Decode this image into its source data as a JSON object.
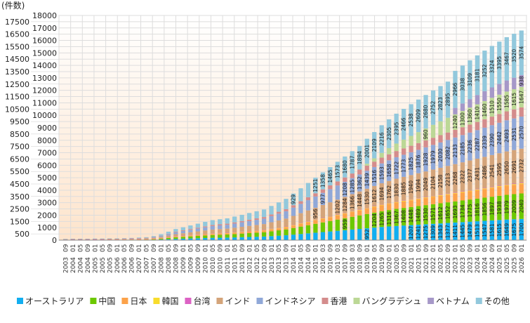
{
  "chart_data": {
    "type": "bar",
    "stacked": true,
    "ylabel": "(件数)",
    "ylim": [
      0,
      18000
    ],
    "ytick_step": 500,
    "grid": true,
    "legend_position": "bottom",
    "categories": [
      [
        "2003",
        "09"
      ],
      [
        "2004",
        "01"
      ],
      [
        "2004",
        "05"
      ],
      [
        "2004",
        "09"
      ],
      [
        "2005",
        "01"
      ],
      [
        "2005",
        "05"
      ],
      [
        "2005",
        "09"
      ],
      [
        "2006",
        "01"
      ],
      [
        "2006",
        "05"
      ],
      [
        "2006",
        "09"
      ],
      [
        "2007",
        "01"
      ],
      [
        "2007",
        "05"
      ],
      [
        "2007",
        "09"
      ],
      [
        "2008",
        "01"
      ],
      [
        "2008",
        "05"
      ],
      [
        "2008",
        "09"
      ],
      [
        "2009",
        "01"
      ],
      [
        "2009",
        "05"
      ],
      [
        "2009",
        "09"
      ],
      [
        "2010",
        "01"
      ],
      [
        "2010",
        "05"
      ],
      [
        "2010",
        "09"
      ],
      [
        "2011",
        "01"
      ],
      [
        "2011",
        "05"
      ],
      [
        "2011",
        "09"
      ],
      [
        "2012",
        "01"
      ],
      [
        "2012",
        "05"
      ],
      [
        "2012",
        "09"
      ],
      [
        "2013",
        "01"
      ],
      [
        "2013",
        "05"
      ],
      [
        "2013",
        "09"
      ],
      [
        "2014",
        "01"
      ],
      [
        "2014",
        "05"
      ],
      [
        "2014",
        "09"
      ],
      [
        "2015",
        "01"
      ],
      [
        "2016",
        "03"
      ],
      [
        "2016",
        "09"
      ],
      [
        "2017",
        "03"
      ],
      [
        "2017",
        "09"
      ],
      [
        "2018",
        "03"
      ],
      [
        "2018",
        "09"
      ],
      [
        "2019",
        "01"
      ],
      [
        "2019",
        "05"
      ],
      [
        "2019",
        "09"
      ],
      [
        "2020",
        "01"
      ],
      [
        "2020",
        "05"
      ],
      [
        "2020",
        "09"
      ],
      [
        "2021",
        "01"
      ],
      [
        "2021",
        "05"
      ],
      [
        "2021",
        "09"
      ],
      [
        "2022",
        "01"
      ],
      [
        "2022",
        "05"
      ],
      [
        "2022",
        "09"
      ],
      [
        "2023",
        "01"
      ],
      [
        "2023",
        "05"
      ],
      [
        "2023",
        "09"
      ],
      [
        "2024",
        "01"
      ],
      [
        "2024",
        "05"
      ],
      [
        "2024",
        "09"
      ],
      [
        "2025",
        "01"
      ],
      [
        "2025",
        "05"
      ],
      [
        "2025",
        "09"
      ],
      [
        "2026",
        "01"
      ]
    ],
    "series": [
      {
        "name": "オーストラリア",
        "color": "#12aef0",
        "values": [
          9,
          10,
          10,
          10,
          12,
          12,
          14,
          14,
          15,
          17,
          20,
          24,
          34,
          51,
          77,
          102,
          119,
          136,
          153,
          170,
          187,
          196,
          204,
          221,
          238,
          255,
          272,
          289,
          323,
          357,
          391,
          442,
          493,
          544,
          595,
          646,
          697,
          748,
          799,
          850,
          901,
          952,
          1003,
          1054,
          1097,
          1139,
          1173,
          1207,
          1241,
          1275,
          1309,
          1343,
          1377,
          1411,
          1445,
          1479,
          1513,
          1547,
          1581,
          1615,
          1649,
          1675,
          1700
        ]
      },
      {
        "name": "中国",
        "color": "#6cc800",
        "values": [
          10,
          12,
          12,
          12,
          14,
          14,
          16,
          16,
          18,
          20,
          24,
          29,
          41,
          61,
          92,
          122,
          143,
          163,
          184,
          204,
          224,
          235,
          245,
          265,
          286,
          306,
          326,
          347,
          388,
          428,
          469,
          530,
          592,
          653,
          714,
          775,
          836,
          898,
          959,
          1020,
          1081,
          1142,
          1204,
          1265,
          1316,
          1367,
          1408,
          1448,
          1489,
          1530,
          1571,
          1612,
          1652,
          1693,
          1734,
          1775,
          1816,
          1856,
          1897,
          1938,
          1979,
          2009,
          2040
        ]
      },
      {
        "name": "日本",
        "color": "#fca24a",
        "values": [
          4,
          5,
          5,
          5,
          5,
          5,
          6,
          6,
          7,
          8,
          9,
          11,
          15,
          23,
          34,
          45,
          53,
          60,
          68,
          76,
          83,
          87,
          91,
          98,
          106,
          113,
          121,
          128,
          143,
          159,
          174,
          196,
          219,
          242,
          264,
          287,
          310,
          332,
          355,
          378,
          400,
          423,
          445,
          468,
          487,
          506,
          521,
          536,
          551,
          566,
          581,
          596,
          612,
          627,
          642,
          657,
          672,
          687,
          702,
          717,
          732,
          744,
          755
        ]
      },
      {
        "name": "韓国",
        "color": "#f8dc2c",
        "values": [
          20,
          22,
          22,
          23,
          24,
          25,
          26,
          27,
          28,
          30,
          31,
          32,
          33,
          34,
          35,
          36,
          37,
          38,
          38,
          39,
          40,
          40,
          41,
          41,
          42,
          42,
          43,
          43,
          44,
          44,
          45,
          45,
          46,
          46,
          47,
          47,
          48,
          48,
          49,
          49,
          50,
          50,
          51,
          51,
          52,
          52,
          53,
          53,
          54,
          54,
          55,
          55,
          56,
          56,
          57,
          57,
          58,
          58,
          59,
          59,
          60,
          60,
          60
        ]
      },
      {
        "name": "台湾",
        "color": "#dc62c4",
        "values": [
          5,
          5,
          5,
          5,
          6,
          6,
          6,
          6,
          7,
          7,
          7,
          8,
          8,
          9,
          9,
          10,
          10,
          11,
          11,
          12,
          12,
          13,
          13,
          14,
          14,
          15,
          15,
          16,
          16,
          17,
          17,
          18,
          18,
          19,
          19,
          20,
          20,
          21,
          21,
          22,
          22,
          23,
          24,
          25,
          26,
          27,
          28,
          29,
          30,
          31,
          32,
          33,
          34,
          35,
          35,
          36,
          37,
          37,
          38,
          38,
          39,
          40,
          40
        ]
      },
      {
        "name": "インド",
        "color": "#d4a47a",
        "values": [
          14,
          16,
          16,
          16,
          19,
          19,
          22,
          22,
          25,
          27,
          33,
          38,
          55,
          82,
          123,
          164,
          191,
          219,
          246,
          273,
          301,
          314,
          328,
          355,
          382,
          410,
          437,
          464,
          519,
          574,
          628,
          710,
          792,
          874,
          956,
          1038,
          1120,
          1202,
          1284,
          1366,
          1448,
          1530,
          1612,
          1694,
          1762,
          1830,
          1885,
          1940,
          1994,
          2049,
          2104,
          2158,
          2213,
          2268,
          2322,
          2377,
          2431,
          2486,
          2541,
          2595,
          2650,
          2691,
          2732
        ]
      },
      {
        "name": "インドネシア",
        "color": "#90a8d8",
        "values": [
          13,
          15,
          15,
          15,
          18,
          18,
          21,
          21,
          23,
          26,
          31,
          36,
          51,
          77,
          116,
          154,
          180,
          206,
          231,
          257,
          283,
          296,
          308,
          334,
          360,
          386,
          411,
          437,
          488,
          540,
          591,
          668,
          745,
          822,
          900,
          977,
          1054,
          1131,
          1208,
          1285,
          1362,
          1439,
          1516,
          1593,
          1658,
          1722,
          1773,
          1825,
          1876,
          1928,
          1979,
          2030,
          2082,
          2133,
          2185,
          2236,
          2287,
          2339,
          2390,
          2442,
          2493,
          2531,
          2570
        ]
      },
      {
        "name": "香港",
        "color": "#d48c8c",
        "values": [
          4,
          4,
          4,
          4,
          5,
          5,
          6,
          6,
          7,
          7,
          9,
          10,
          15,
          22,
          33,
          44,
          52,
          59,
          66,
          74,
          81,
          85,
          89,
          96,
          103,
          111,
          118,
          125,
          140,
          155,
          170,
          192,
          214,
          236,
          258,
          280,
          303,
          325,
          347,
          369,
          391,
          413,
          435,
          458,
          476,
          494,
          509,
          524,
          539,
          554,
          568,
          583,
          598,
          613,
          627,
          642,
          657,
          672,
          686,
          701,
          716,
          727,
          738
        ]
      },
      {
        "name": "バングラデシュ",
        "color": "#bcd896",
        "values": [
          0,
          0,
          0,
          0,
          0,
          0,
          0,
          0,
          0,
          0,
          0,
          0,
          0,
          0,
          0,
          0,
          0,
          0,
          0,
          0,
          0,
          0,
          0,
          0,
          0,
          0,
          0,
          0,
          0,
          0,
          0,
          0,
          0,
          0,
          0,
          0,
          0,
          0,
          0,
          0,
          0,
          150,
          260,
          380,
          500,
          600,
          700,
          790,
          880,
          960,
          1040,
          1110,
          1180,
          1240,
          1300,
          1360,
          1410,
          1460,
          1510,
          1550,
          1585,
          1615,
          1647
        ]
      },
      {
        "name": "ベトナム",
        "color": "#a698c8",
        "values": [
          0,
          0,
          0,
          0,
          0,
          0,
          0,
          0,
          0,
          0,
          0,
          0,
          0,
          0,
          0,
          0,
          0,
          0,
          0,
          0,
          0,
          0,
          0,
          0,
          0,
          0,
          0,
          0,
          0,
          0,
          0,
          0,
          0,
          0,
          0,
          0,
          0,
          0,
          0,
          0,
          0,
          0,
          0,
          0,
          0,
          0,
          0,
          0,
          0,
          0,
          0,
          0,
          0,
          520,
          600,
          680,
          740,
          790,
          830,
          856,
          889,
          921,
          938
        ]
      },
      {
        "name": "その他",
        "color": "#92c8dc",
        "values": [
          18,
          21,
          21,
          21,
          25,
          25,
          29,
          29,
          32,
          36,
          43,
          50,
          71,
          107,
          161,
          214,
          250,
          286,
          322,
          357,
          393,
          411,
          429,
          465,
          500,
          536,
          572,
          608,
          679,
          751,
          822,
          929,
          1036,
          1144,
          1251,
          1358,
          1465,
          1573,
          1680,
          1787,
          1894,
          2001,
          2109,
          2216,
          2305,
          2395,
          2466,
          2538,
          2609,
          2680,
          2752,
          2823,
          2895,
          2966,
          3038,
          3109,
          3181,
          3252,
          3324,
          3395,
          3467,
          3520,
          3574
        ]
      }
    ]
  }
}
